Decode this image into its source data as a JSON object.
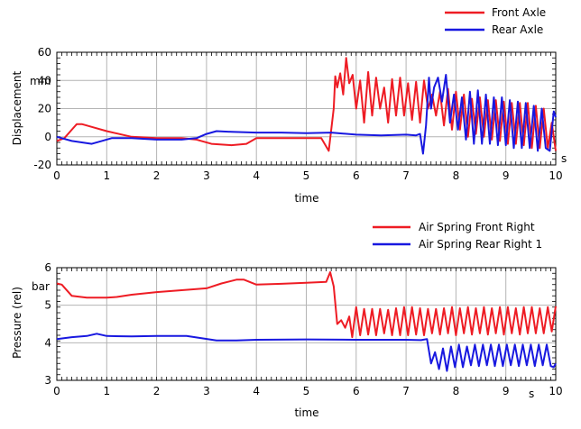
{
  "chart_data": [
    {
      "type": "line",
      "legend_placement": "top-right",
      "grid": true,
      "xlabel": "time",
      "x_unit": "s",
      "ylabel": "Displacement",
      "y_unit": "mm",
      "xlim": [
        0,
        10
      ],
      "ylim": [
        -20,
        60
      ],
      "xticks": [
        "0",
        "1",
        "2",
        "3",
        "4",
        "5",
        "6",
        "7",
        "8",
        "9",
        "10"
      ],
      "yticks": [
        "-20",
        "0",
        "20",
        "40",
        "60"
      ],
      "series": [
        {
          "name": "Front Axle",
          "color": "#ee1c24",
          "x": [
            0,
            0.15,
            0.3,
            0.4,
            0.5,
            0.7,
            1.0,
            1.5,
            2.0,
            2.5,
            2.8,
            3.1,
            3.5,
            3.8,
            4.0,
            4.5,
            5.0,
            5.3,
            5.45,
            5.55,
            5.58,
            5.62,
            5.68,
            5.74,
            5.8,
            5.86,
            5.93,
            6.0,
            6.08,
            6.16,
            6.24,
            6.32,
            6.4,
            6.48,
            6.56,
            6.64,
            6.72,
            6.8,
            6.88,
            6.96,
            7.04,
            7.12,
            7.2,
            7.28,
            7.36,
            7.44,
            7.52,
            7.6,
            7.68,
            7.76,
            7.84,
            7.92,
            8.0,
            8.08,
            8.16,
            8.24,
            8.32,
            8.4,
            8.48,
            8.56,
            8.64,
            8.72,
            8.8,
            8.88,
            8.96,
            9.04,
            9.12,
            9.2,
            9.28,
            9.36,
            9.44,
            9.52,
            9.6,
            9.68,
            9.76,
            9.84,
            9.92,
            10.0
          ],
          "y": [
            -3,
            -1,
            5,
            9,
            9,
            7,
            4,
            0,
            -1,
            -1,
            -2,
            -5,
            -6,
            -5,
            -1,
            -1,
            -1,
            -1,
            -10,
            20,
            43,
            35,
            45,
            30,
            56,
            38,
            44,
            20,
            40,
            10,
            46,
            15,
            42,
            20,
            35,
            10,
            41,
            15,
            42,
            15,
            38,
            12,
            39,
            10,
            40,
            20,
            30,
            15,
            32,
            8,
            34,
            5,
            32,
            5,
            30,
            0,
            27,
            2,
            28,
            0,
            26,
            -2,
            26,
            -3,
            25,
            -5,
            24,
            -5,
            24,
            -6,
            24,
            -8,
            22,
            -8,
            20,
            -8,
            10,
            -10
          ]
        },
        {
          "name": "Rear Axle",
          "color": "#1818e0",
          "x": [
            0,
            0.3,
            0.7,
            0.9,
            1.1,
            1.5,
            2.0,
            2.5,
            2.8,
            3.0,
            3.2,
            3.5,
            4.0,
            4.5,
            5.0,
            5.5,
            6.0,
            6.5,
            7.0,
            7.2,
            7.28,
            7.34,
            7.4,
            7.46,
            7.5,
            7.56,
            7.64,
            7.72,
            7.8,
            7.88,
            7.96,
            8.04,
            8.12,
            8.2,
            8.28,
            8.36,
            8.44,
            8.52,
            8.6,
            8.68,
            8.76,
            8.84,
            8.92,
            9.0,
            9.08,
            9.16,
            9.24,
            9.32,
            9.4,
            9.48,
            9.56,
            9.64,
            9.72,
            9.8,
            9.88,
            9.96,
            10.0
          ],
          "y": [
            0,
            -3,
            -5,
            -3,
            -1,
            -1,
            -2,
            -2,
            -1,
            2,
            4,
            3.5,
            3,
            3,
            2.5,
            3,
            1.5,
            1,
            1.5,
            1,
            2,
            -12,
            8,
            42,
            20,
            35,
            42,
            25,
            44,
            10,
            30,
            5,
            28,
            -2,
            32,
            -5,
            33,
            -5,
            30,
            -5,
            28,
            -6,
            28,
            -6,
            26,
            -8,
            25,
            -8,
            24,
            -8,
            22,
            -10,
            20,
            -8,
            -10,
            18,
            14
          ]
        }
      ]
    },
    {
      "type": "line",
      "legend_placement": "top-right",
      "grid": true,
      "xlabel": "time",
      "x_unit": "s",
      "ylabel": "Pressure (rel)",
      "y_unit": "bar",
      "xlim": [
        0,
        10
      ],
      "ylim": [
        3,
        6
      ],
      "xticks": [
        "0",
        "1",
        "2",
        "3",
        "4",
        "5",
        "6",
        "7",
        "8",
        "9",
        "10"
      ],
      "yticks": [
        "3",
        "4",
        "5",
        "6"
      ],
      "series": [
        {
          "name": "Air Spring Front Right",
          "color": "#ee1c24",
          "x": [
            0,
            0.1,
            0.3,
            0.6,
            1.0,
            1.2,
            1.5,
            2.0,
            2.5,
            3.0,
            3.3,
            3.6,
            3.75,
            4.0,
            4.5,
            5.0,
            5.4,
            5.48,
            5.55,
            5.62,
            5.7,
            5.78,
            5.86,
            5.92,
            6.0,
            6.08,
            6.16,
            6.24,
            6.32,
            6.4,
            6.48,
            6.56,
            6.64,
            6.72,
            6.8,
            6.88,
            6.96,
            7.04,
            7.12,
            7.2,
            7.28,
            7.36,
            7.44,
            7.52,
            7.6,
            7.68,
            7.76,
            7.84,
            7.92,
            8.0,
            8.08,
            8.16,
            8.24,
            8.32,
            8.4,
            8.48,
            8.56,
            8.64,
            8.72,
            8.8,
            8.88,
            8.96,
            9.04,
            9.12,
            9.2,
            9.28,
            9.36,
            9.44,
            9.52,
            9.6,
            9.68,
            9.76,
            9.84,
            9.92,
            10.0
          ],
          "y": [
            5.58,
            5.55,
            5.25,
            5.2,
            5.2,
            5.22,
            5.28,
            5.35,
            5.4,
            5.45,
            5.58,
            5.68,
            5.68,
            5.55,
            5.57,
            5.6,
            5.62,
            5.88,
            5.5,
            4.5,
            4.6,
            4.4,
            4.7,
            4.15,
            4.95,
            4.2,
            4.9,
            4.22,
            4.9,
            4.2,
            4.9,
            4.25,
            4.88,
            4.2,
            4.92,
            4.2,
            4.95,
            4.2,
            4.95,
            4.22,
            4.92,
            4.2,
            4.9,
            4.25,
            4.9,
            4.22,
            4.92,
            4.25,
            4.95,
            4.2,
            4.92,
            4.25,
            4.95,
            4.22,
            4.92,
            4.25,
            4.95,
            4.22,
            4.92,
            4.25,
            4.95,
            4.22,
            4.95,
            4.25,
            4.92,
            4.22,
            4.95,
            4.25,
            4.95,
            4.25,
            4.92,
            4.25,
            4.95,
            4.3,
            4.97
          ]
        },
        {
          "name": "Air Spring Rear Right 1",
          "color": "#1818e0",
          "x": [
            0,
            0.3,
            0.6,
            0.8,
            1.0,
            1.5,
            2.0,
            2.6,
            2.9,
            3.2,
            3.6,
            4.0,
            5.0,
            6.0,
            7.0,
            7.3,
            7.42,
            7.5,
            7.58,
            7.66,
            7.74,
            7.82,
            7.9,
            7.98,
            8.06,
            8.14,
            8.22,
            8.3,
            8.38,
            8.46,
            8.54,
            8.62,
            8.7,
            8.78,
            8.86,
            8.94,
            9.02,
            9.1,
            9.18,
            9.26,
            9.34,
            9.42,
            9.5,
            9.58,
            9.66,
            9.74,
            9.82,
            9.9,
            9.96,
            10.0
          ],
          "y": [
            4.1,
            4.15,
            4.18,
            4.24,
            4.18,
            4.17,
            4.18,
            4.18,
            4.12,
            4.06,
            4.06,
            4.08,
            4.09,
            4.08,
            4.08,
            4.07,
            4.1,
            3.45,
            3.75,
            3.3,
            3.85,
            3.25,
            3.9,
            3.35,
            3.95,
            3.35,
            3.9,
            3.4,
            3.95,
            3.38,
            3.95,
            3.4,
            3.95,
            3.38,
            3.95,
            3.38,
            3.95,
            3.4,
            3.95,
            3.38,
            3.95,
            3.4,
            3.95,
            3.38,
            3.95,
            3.4,
            3.95,
            3.38,
            3.35,
            3.45
          ]
        }
      ]
    }
  ]
}
